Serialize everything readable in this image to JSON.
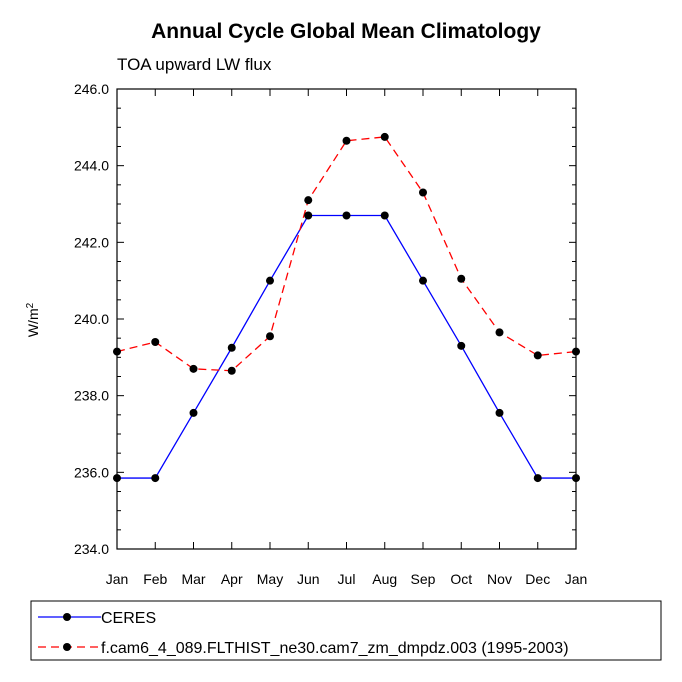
{
  "chart_data": {
    "type": "line",
    "title": "Annual Cycle Global Mean Climatology",
    "subtitle": "TOA upward LW flux",
    "ylabel": "W/m",
    "ylabel_sup": "2",
    "ylim": [
      234.0,
      246.0
    ],
    "yticks": [
      "234.0",
      "236.0",
      "238.0",
      "240.0",
      "242.0",
      "244.0",
      "246.0"
    ],
    "categories": [
      "Jan",
      "Feb",
      "Mar",
      "Apr",
      "May",
      "Jun",
      "Jul",
      "Aug",
      "Sep",
      "Oct",
      "Nov",
      "Dec",
      "Jan"
    ],
    "series": [
      {
        "name": "CERES",
        "color": "#0000ff",
        "style": "solid",
        "values": [
          235.85,
          235.85,
          237.55,
          239.25,
          241.0,
          242.7,
          242.7,
          242.7,
          241.0,
          239.3,
          237.55,
          235.85,
          235.85
        ]
      },
      {
        "name": "f.cam6_4_089.FLTHIST_ne30.cam7_zm_dmpdz.003 (1995-2003)",
        "color": "#ff0000",
        "style": "dashed",
        "values": [
          239.15,
          239.4,
          238.7,
          238.65,
          239.55,
          243.1,
          244.65,
          244.75,
          243.3,
          241.05,
          239.65,
          239.05,
          239.15
        ]
      }
    ]
  }
}
